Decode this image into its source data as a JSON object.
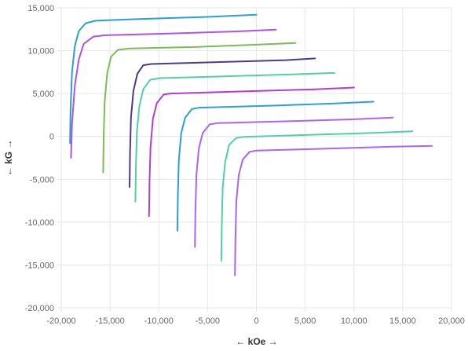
{
  "chart_data": {
    "type": "line",
    "xlabel": "← kOe →",
    "ylabel": "← kG →",
    "xlim": [
      -20000,
      20000
    ],
    "ylim": [
      -20000,
      15000
    ],
    "x_ticks": [
      -20000,
      -15000,
      -10000,
      -5000,
      0,
      5000,
      10000,
      15000,
      20000
    ],
    "y_ticks": [
      -20000,
      -15000,
      -10000,
      -5000,
      0,
      5000,
      10000,
      15000
    ],
    "x_tick_labels": [
      "-20,000",
      "-15,000",
      "-10,000",
      "-5,000",
      "0",
      "5,000",
      "10,000",
      "15,000",
      "20,000"
    ],
    "y_tick_labels": [
      "-20,000",
      "-15,000",
      "-10,000",
      "-5,000",
      "0",
      "5,000",
      "10,000",
      "15,000"
    ],
    "grid": true,
    "series": [
      {
        "color": "#2b9fd6",
        "points": [
          [
            -19100,
            -800
          ],
          [
            -19050,
            3000
          ],
          [
            -18900,
            7500
          ],
          [
            -18600,
            10600
          ],
          [
            -18200,
            12300
          ],
          [
            -17500,
            13200
          ],
          [
            -16500,
            13500
          ],
          [
            -12000,
            13700
          ],
          [
            -5000,
            13950
          ],
          [
            0,
            14200
          ]
        ]
      },
      {
        "color": "#a855e6",
        "points": [
          [
            -19000,
            -2500
          ],
          [
            -18900,
            1500
          ],
          [
            -18600,
            6000
          ],
          [
            -18200,
            9000
          ],
          [
            -17700,
            10800
          ],
          [
            -16700,
            11650
          ],
          [
            -15500,
            11800
          ],
          [
            -9000,
            12000
          ],
          [
            -2000,
            12250
          ],
          [
            2000,
            12450
          ]
        ]
      },
      {
        "color": "#7dbb5a",
        "points": [
          [
            -15700,
            -4200
          ],
          [
            -15650,
            0
          ],
          [
            -15550,
            4000
          ],
          [
            -15300,
            7300
          ],
          [
            -14900,
            9300
          ],
          [
            -14200,
            10100
          ],
          [
            -13000,
            10250
          ],
          [
            -6000,
            10450
          ],
          [
            0,
            10700
          ],
          [
            4000,
            10900
          ]
        ]
      },
      {
        "color": "#4b3a8f",
        "points": [
          [
            -13000,
            -5900
          ],
          [
            -12950,
            -2000
          ],
          [
            -12850,
            2200
          ],
          [
            -12600,
            5300
          ],
          [
            -12200,
            7300
          ],
          [
            -11600,
            8300
          ],
          [
            -10800,
            8450
          ],
          [
            -3000,
            8700
          ],
          [
            3000,
            8900
          ],
          [
            6000,
            9100
          ]
        ]
      },
      {
        "color": "#4fd1a5",
        "points": [
          [
            -12400,
            -7600
          ],
          [
            -12350,
            -3500
          ],
          [
            -12250,
            500
          ],
          [
            -12000,
            3500
          ],
          [
            -11600,
            5500
          ],
          [
            -10900,
            6600
          ],
          [
            -9900,
            6800
          ],
          [
            -2000,
            7050
          ],
          [
            4000,
            7250
          ],
          [
            8000,
            7400
          ]
        ]
      },
      {
        "color": "#b03fd1",
        "points": [
          [
            -11000,
            -9300
          ],
          [
            -10950,
            -5300
          ],
          [
            -10850,
            -1200
          ],
          [
            -10600,
            2100
          ],
          [
            -10200,
            3900
          ],
          [
            -9500,
            4900
          ],
          [
            -8800,
            5000
          ],
          [
            0,
            5300
          ],
          [
            6000,
            5500
          ],
          [
            10000,
            5700
          ]
        ]
      },
      {
        "color": "#2b9fd6",
        "points": [
          [
            -8100,
            -11000
          ],
          [
            -8050,
            -7000
          ],
          [
            -7950,
            -2800
          ],
          [
            -7700,
            400
          ],
          [
            -7300,
            2200
          ],
          [
            -6600,
            3200
          ],
          [
            -5900,
            3350
          ],
          [
            2000,
            3600
          ],
          [
            8000,
            3850
          ],
          [
            12000,
            4050
          ]
        ]
      },
      {
        "color": "#a866f2",
        "points": [
          [
            -6300,
            -12900
          ],
          [
            -6250,
            -9000
          ],
          [
            -6150,
            -4500
          ],
          [
            -5900,
            -1400
          ],
          [
            -5500,
            400
          ],
          [
            -4800,
            1400
          ],
          [
            -4000,
            1550
          ],
          [
            4000,
            1800
          ],
          [
            10000,
            2000
          ],
          [
            14000,
            2200
          ]
        ]
      },
      {
        "color": "#4fd1a5",
        "points": [
          [
            -3600,
            -14500
          ],
          [
            -3550,
            -10500
          ],
          [
            -3450,
            -6000
          ],
          [
            -3200,
            -3000
          ],
          [
            -2800,
            -1000
          ],
          [
            -2100,
            -200
          ],
          [
            -1300,
            -50
          ],
          [
            6000,
            200
          ],
          [
            12000,
            400
          ],
          [
            16000,
            600
          ]
        ]
      },
      {
        "color": "#a866f2",
        "points": [
          [
            -2200,
            -16200
          ],
          [
            -2150,
            -12000
          ],
          [
            -2050,
            -7500
          ],
          [
            -1800,
            -4500
          ],
          [
            -1400,
            -2700
          ],
          [
            -700,
            -1800
          ],
          [
            0,
            -1650
          ],
          [
            8000,
            -1400
          ],
          [
            14000,
            -1200
          ],
          [
            18000,
            -1100
          ]
        ]
      }
    ]
  }
}
